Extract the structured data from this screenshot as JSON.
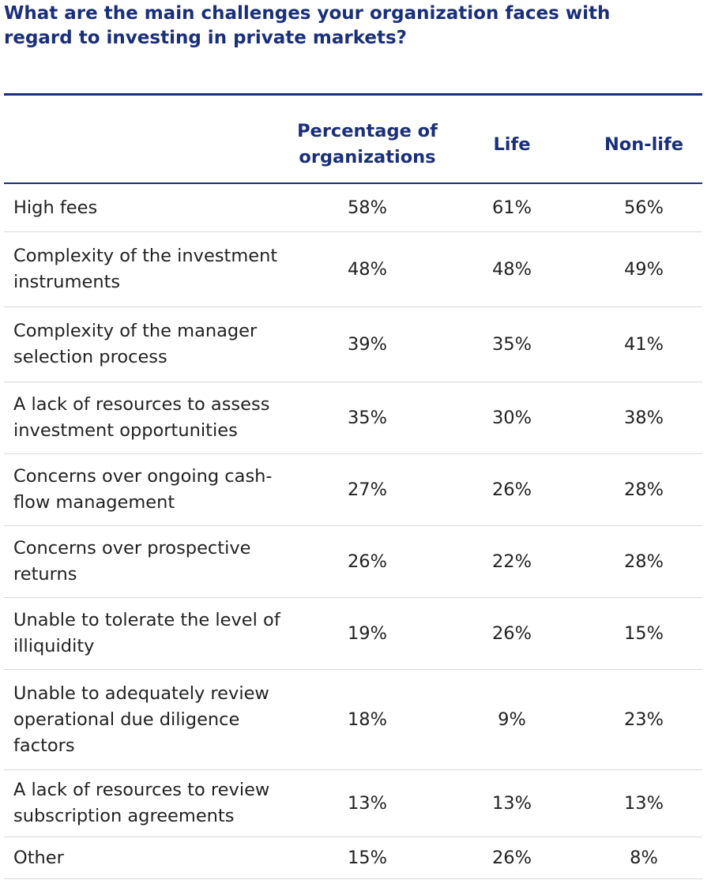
{
  "title": "What are the main challenges your organization faces with regard to investing in private markets?",
  "chart_data": {
    "type": "table",
    "title": "What are the main challenges your organization faces with regard to investing in private markets?",
    "columns": [
      "",
      "Percentage of organizations",
      "Life",
      "Non-life"
    ],
    "rows": [
      {
        "label": "High fees",
        "pct": "58%",
        "life": "61%",
        "nonlife": "56%"
      },
      {
        "label": "Complexity of the investment instruments",
        "pct": "48%",
        "life": "48%",
        "nonlife": "49%"
      },
      {
        "label": "Complexity of the manager selection process",
        "pct": "39%",
        "life": "35%",
        "nonlife": "41%"
      },
      {
        "label": "A lack of resources to assess investment opportunities",
        "pct": "35%",
        "life": "30%",
        "nonlife": "38%"
      },
      {
        "label": "Concerns over ongoing cash-flow management",
        "pct": "27%",
        "life": "26%",
        "nonlife": "28%"
      },
      {
        "label": "Concerns over prospective returns",
        "pct": "26%",
        "life": "22%",
        "nonlife": "28%"
      },
      {
        "label": "Unable to tolerate the level of illiquidity",
        "pct": "19%",
        "life": "26%",
        "nonlife": "15%"
      },
      {
        "label": "Unable to adequately review operational due diligence factors",
        "pct": "18%",
        "life": "9%",
        "nonlife": "23%"
      },
      {
        "label": "A lack of resources to review subscription agreements",
        "pct": "13%",
        "life": "13%",
        "nonlife": "13%"
      },
      {
        "label": "Other",
        "pct": "15%",
        "life": "26%",
        "nonlife": "8%"
      }
    ]
  },
  "colors": {
    "header": "#1a2f7a",
    "text": "#222222",
    "divider": "#d9d9d9"
  }
}
